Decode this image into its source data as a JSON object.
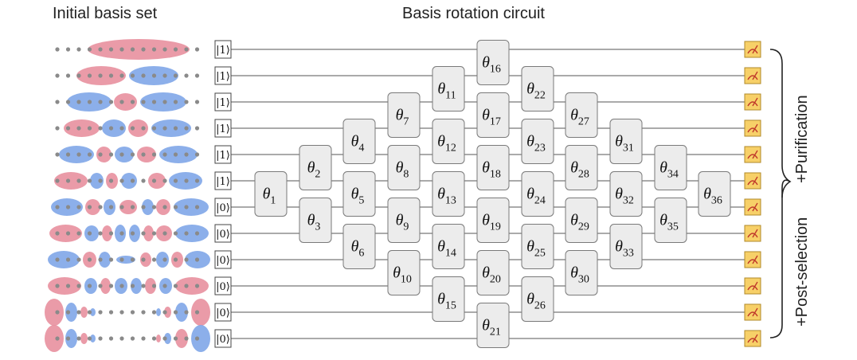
{
  "titles": {
    "left": "Initial basis set",
    "center": "Basis rotation circuit"
  },
  "inputs": [
    "|1⟩",
    "|1⟩",
    "|1⟩",
    "|1⟩",
    "|1⟩",
    "|1⟩",
    "|0⟩",
    "|0⟩",
    "|0⟩",
    "|0⟩",
    "|0⟩",
    "|0⟩"
  ],
  "gates": [
    {
      "label": "θ",
      "sub": "1"
    },
    {
      "label": "θ",
      "sub": "2"
    },
    {
      "label": "θ",
      "sub": "3"
    },
    {
      "label": "θ",
      "sub": "4"
    },
    {
      "label": "θ",
      "sub": "5"
    },
    {
      "label": "θ",
      "sub": "6"
    },
    {
      "label": "θ",
      "sub": "7"
    },
    {
      "label": "θ",
      "sub": "8"
    },
    {
      "label": "θ",
      "sub": "9"
    },
    {
      "label": "θ",
      "sub": "10"
    },
    {
      "label": "θ",
      "sub": "11"
    },
    {
      "label": "θ",
      "sub": "12"
    },
    {
      "label": "θ",
      "sub": "13"
    },
    {
      "label": "θ",
      "sub": "14"
    },
    {
      "label": "θ",
      "sub": "15"
    },
    {
      "label": "θ",
      "sub": "16"
    },
    {
      "label": "θ",
      "sub": "17"
    },
    {
      "label": "θ",
      "sub": "18"
    },
    {
      "label": "θ",
      "sub": "19"
    },
    {
      "label": "θ",
      "sub": "20"
    },
    {
      "label": "θ",
      "sub": "21"
    },
    {
      "label": "θ",
      "sub": "22"
    },
    {
      "label": "θ",
      "sub": "23"
    },
    {
      "label": "θ",
      "sub": "24"
    },
    {
      "label": "θ",
      "sub": "25"
    },
    {
      "label": "θ",
      "sub": "26"
    },
    {
      "label": "θ",
      "sub": "27"
    },
    {
      "label": "θ",
      "sub": "28"
    },
    {
      "label": "θ",
      "sub": "29"
    },
    {
      "label": "θ",
      "sub": "30"
    },
    {
      "label": "θ",
      "sub": "31"
    },
    {
      "label": "θ",
      "sub": "32"
    },
    {
      "label": "θ",
      "sub": "33"
    },
    {
      "label": "θ",
      "sub": "34"
    },
    {
      "label": "θ",
      "sub": "35"
    },
    {
      "label": "θ",
      "sub": "36"
    }
  ],
  "brackets": {
    "top": "+Purification",
    "bottom": "+Post-selection"
  },
  "colors": {
    "pink": "#e8909e",
    "blue": "#7fa6e8",
    "dot": "#8a8a8a",
    "gate_fill": "#ececec",
    "gate_stroke": "#7a7a7a",
    "measure_fill": "#f7d068",
    "measure_stroke": "#b08a2a",
    "measure_needle": "#c0392b"
  },
  "icons": {
    "measure": "measurement-meter-icon"
  }
}
